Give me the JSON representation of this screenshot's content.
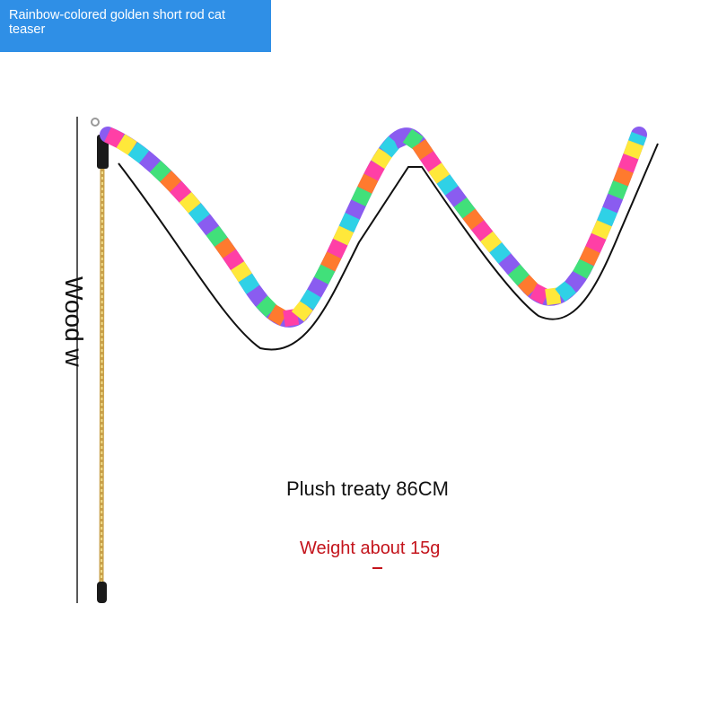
{
  "title": "Rainbow-colored golden short rod cat teaser",
  "vertical_label": "Wood w",
  "length_label": "Plush treaty 86CM",
  "weight_label": "Weight about 15g",
  "colors": {
    "banner": "#2f8fe6",
    "weight_text": "#c4141c",
    "rod_gold": "#d9b54a",
    "stripe_palette": [
      "#ff3fa6",
      "#ffe83a",
      "#2fd1e6",
      "#8a5cf0",
      "#41e07a",
      "#ff7a2e"
    ]
  }
}
